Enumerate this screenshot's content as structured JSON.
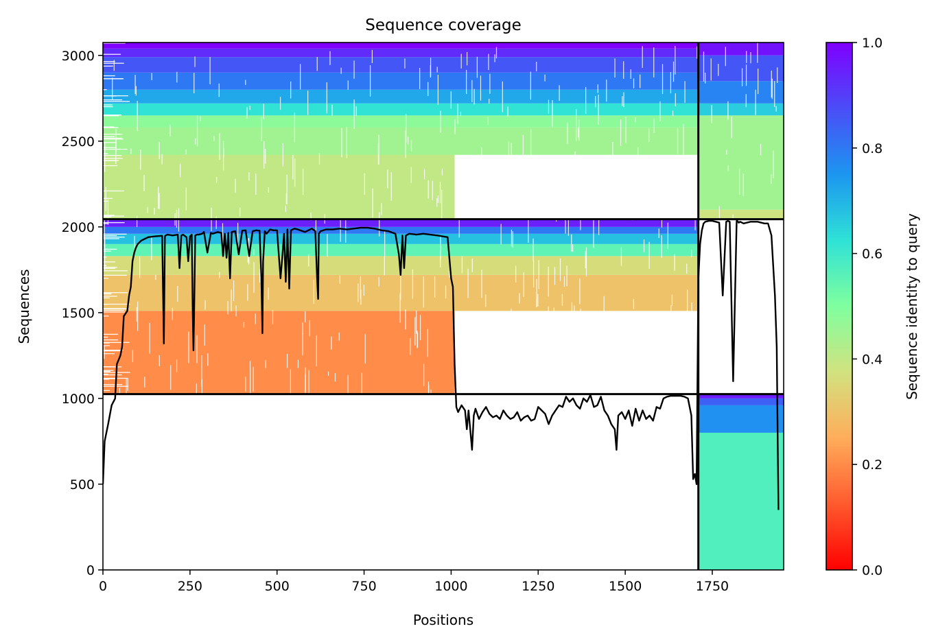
{
  "chart_data": {
    "type": "heatmap",
    "title": "Sequence coverage",
    "xlabel": "Positions",
    "ylabel": "Sequences",
    "xlim": [
      0,
      1955
    ],
    "ylim": [
      0,
      3075
    ],
    "xticks": [
      0,
      250,
      500,
      750,
      1000,
      1250,
      1500,
      1750
    ],
    "xtick_labels": [
      "0",
      "250",
      "500",
      "750",
      "1000",
      "1250",
      "1500",
      "1750"
    ],
    "yticks": [
      0,
      500,
      1000,
      1500,
      2000,
      2500,
      3000
    ],
    "ytick_labels": [
      "0",
      "500",
      "1000",
      "1500",
      "2000",
      "2500",
      "3000"
    ],
    "colormap": "rainbow_r",
    "colorbar": {
      "label": "Sequence identity to query",
      "range": [
        0.0,
        1.0
      ],
      "ticks": [
        0.0,
        0.2,
        0.4,
        0.6,
        0.8,
        1.0
      ],
      "tick_labels": [
        "0.0",
        "0.2",
        "0.4",
        "0.6",
        "0.8",
        "1.0"
      ]
    },
    "dividers": {
      "vertical_x": 1710,
      "horizontal_y": [
        1025,
        2045
      ]
    },
    "coverage_blocks": [
      {
        "x0": 0,
        "x1": 1710,
        "y0": 2045,
        "y1": 3075,
        "top_x1": 1710,
        "identity_bands": [
          {
            "y0": 2045,
            "y1": 2650,
            "identity": 0.4,
            "x1": 1010
          },
          {
            "y0": 2420,
            "y1": 2580,
            "identity": 0.45,
            "x1": 1710
          },
          {
            "y0": 2580,
            "y1": 2650,
            "identity": 0.48,
            "x1": 1710
          },
          {
            "y0": 2650,
            "y1": 2720,
            "identity": 0.62,
            "x1": 1710
          },
          {
            "y0": 2720,
            "y1": 2800,
            "identity": 0.72,
            "x1": 1710
          },
          {
            "y0": 2800,
            "y1": 2900,
            "identity": 0.8,
            "x1": 1710
          },
          {
            "y0": 2900,
            "y1": 2990,
            "identity": 0.86,
            "x1": 1710
          },
          {
            "y0": 2990,
            "y1": 3040,
            "identity": 0.93,
            "x1": 1710
          },
          {
            "y0": 3040,
            "y1": 3075,
            "identity": 1.0,
            "x1": 1710
          }
        ]
      },
      {
        "x0": 0,
        "x1": 1710,
        "y0": 1025,
        "y1": 2045,
        "identity_bands": [
          {
            "y0": 1025,
            "y1": 1510,
            "identity": 0.2,
            "x1": 1010
          },
          {
            "y0": 1510,
            "y1": 1720,
            "identity": 0.3,
            "x1": 1710
          },
          {
            "y0": 1720,
            "y1": 1830,
            "identity": 0.36,
            "x1": 1710
          },
          {
            "y0": 1830,
            "y1": 1900,
            "identity": 0.55,
            "x1": 1710
          },
          {
            "y0": 1900,
            "y1": 1960,
            "identity": 0.68,
            "x1": 1710
          },
          {
            "y0": 1960,
            "y1": 2000,
            "identity": 0.8,
            "x1": 1710
          },
          {
            "y0": 2000,
            "y1": 2045,
            "identity": 0.95,
            "x1": 1710
          }
        ]
      },
      {
        "x0": 1710,
        "x1": 1955,
        "y0": 2045,
        "y1": 3075,
        "identity_bands": [
          {
            "y0": 2045,
            "y1": 2100,
            "identity": 0.38,
            "x1": 1955
          },
          {
            "y0": 2100,
            "y1": 2650,
            "identity": 0.45,
            "x1": 1955
          },
          {
            "y0": 2650,
            "y1": 2720,
            "identity": 0.66,
            "x1": 1955
          },
          {
            "y0": 2720,
            "y1": 2850,
            "identity": 0.78,
            "x1": 1955
          },
          {
            "y0": 2850,
            "y1": 3000,
            "identity": 0.86,
            "x1": 1955
          },
          {
            "y0": 3000,
            "y1": 3075,
            "identity": 0.97,
            "x1": 1955
          }
        ]
      },
      {
        "x0": 1710,
        "x1": 1955,
        "y0": 0,
        "y1": 1025,
        "identity_bands": [
          {
            "y0": 0,
            "y1": 800,
            "identity": 0.57,
            "x1": 1955
          },
          {
            "y0": 800,
            "y1": 960,
            "identity": 0.76,
            "x1": 1955
          },
          {
            "y0": 960,
            "y1": 1000,
            "identity": 0.84,
            "x1": 1955
          },
          {
            "y0": 1000,
            "y1": 1025,
            "identity": 0.95,
            "x1": 1955
          }
        ]
      }
    ],
    "coverage_line": {
      "name": "coverage",
      "x": [
        0,
        5,
        15,
        25,
        35,
        40,
        50,
        55,
        60,
        70,
        75,
        80,
        85,
        90,
        95,
        100,
        110,
        120,
        130,
        150,
        170,
        175,
        178,
        180,
        185,
        200,
        215,
        220,
        225,
        230,
        240,
        245,
        250,
        255,
        258,
        260,
        262,
        265,
        270,
        275,
        285,
        290,
        300,
        310,
        315,
        330,
        340,
        345,
        350,
        355,
        360,
        365,
        370,
        380,
        390,
        400,
        410,
        420,
        430,
        440,
        450,
        455,
        458,
        460,
        465,
        470,
        480,
        490,
        500,
        510,
        515,
        520,
        525,
        530,
        535,
        540,
        550,
        560,
        580,
        600,
        610,
        615,
        618,
        620,
        625,
        640,
        660,
        680,
        700,
        720,
        740,
        760,
        780,
        800,
        820,
        840,
        850,
        855,
        860,
        865,
        870,
        880,
        900,
        920,
        940,
        960,
        990,
        1000,
        1005,
        1010,
        1015,
        1020,
        1030,
        1040,
        1045,
        1050,
        1060,
        1065,
        1070,
        1080,
        1090,
        1100,
        1110,
        1120,
        1130,
        1140,
        1150,
        1160,
        1170,
        1180,
        1190,
        1200,
        1210,
        1220,
        1230,
        1240,
        1250,
        1260,
        1270,
        1280,
        1290,
        1300,
        1310,
        1320,
        1330,
        1340,
        1350,
        1360,
        1370,
        1380,
        1390,
        1400,
        1410,
        1420,
        1430,
        1440,
        1450,
        1460,
        1470,
        1475,
        1480,
        1490,
        1500,
        1510,
        1520,
        1530,
        1540,
        1550,
        1560,
        1570,
        1580,
        1590,
        1600,
        1610,
        1620,
        1630,
        1640,
        1650,
        1660,
        1670,
        1680,
        1690,
        1695,
        1700,
        1705,
        1710,
        1715,
        1720,
        1725,
        1730,
        1740,
        1750,
        1760,
        1770,
        1780,
        1790,
        1795,
        1800,
        1810,
        1820,
        1822,
        1824,
        1826,
        1830,
        1840,
        1850,
        1860,
        1870,
        1880,
        1890,
        1900,
        1910,
        1920,
        1930,
        1935,
        1940,
        1945,
        1950,
        1955
      ],
      "y": [
        500,
        750,
        850,
        960,
        1000,
        1200,
        1250,
        1300,
        1480,
        1510,
        1600,
        1650,
        1800,
        1850,
        1880,
        1900,
        1920,
        1930,
        1940,
        1945,
        1948,
        1320,
        1945,
        1950,
        1955,
        1950,
        1955,
        1760,
        1950,
        1955,
        1940,
        1800,
        1945,
        1955,
        1500,
        1280,
        1500,
        1950,
        1955,
        1955,
        1960,
        1970,
        1850,
        1965,
        1960,
        1970,
        1965,
        1830,
        1960,
        1820,
        1965,
        1700,
        1970,
        1975,
        1840,
        1978,
        1980,
        1830,
        1975,
        1980,
        1978,
        1700,
        1380,
        1800,
        1975,
        1960,
        1985,
        1980,
        1980,
        1700,
        1820,
        1960,
        1680,
        1985,
        1640,
        1980,
        1990,
        1985,
        1970,
        1990,
        1975,
        1700,
        1580,
        1960,
        1975,
        1985,
        1985,
        1990,
        1985,
        1990,
        1995,
        1995,
        1990,
        1980,
        1975,
        1960,
        1840,
        1720,
        1950,
        1760,
        1950,
        1960,
        1955,
        1960,
        1955,
        1950,
        1940,
        1700,
        1650,
        1200,
        950,
        920,
        960,
        930,
        820,
        930,
        700,
        900,
        940,
        880,
        920,
        950,
        910,
        890,
        900,
        880,
        930,
        900,
        880,
        890,
        920,
        870,
        890,
        900,
        870,
        880,
        950,
        930,
        910,
        850,
        900,
        930,
        960,
        950,
        1010,
        980,
        1000,
        960,
        940,
        1000,
        980,
        1020,
        950,
        960,
        1010,
        930,
        900,
        850,
        820,
        700,
        900,
        920,
        880,
        930,
        840,
        940,
        870,
        930,
        880,
        900,
        870,
        950,
        940,
        1000,
        1010,
        1015,
        1015,
        1015,
        1015,
        1010,
        1000,
        900,
        530,
        560,
        500,
        1700,
        1900,
        1980,
        2020,
        2030,
        2035,
        2035,
        2030,
        2025,
        1600,
        2030,
        2035,
        2030,
        1100,
        2035,
        2035,
        2030,
        2025,
        2030,
        2020,
        2025,
        2030,
        2030,
        2030,
        2025,
        2020,
        2020,
        1950,
        1600,
        1300,
        350
      ]
    }
  }
}
